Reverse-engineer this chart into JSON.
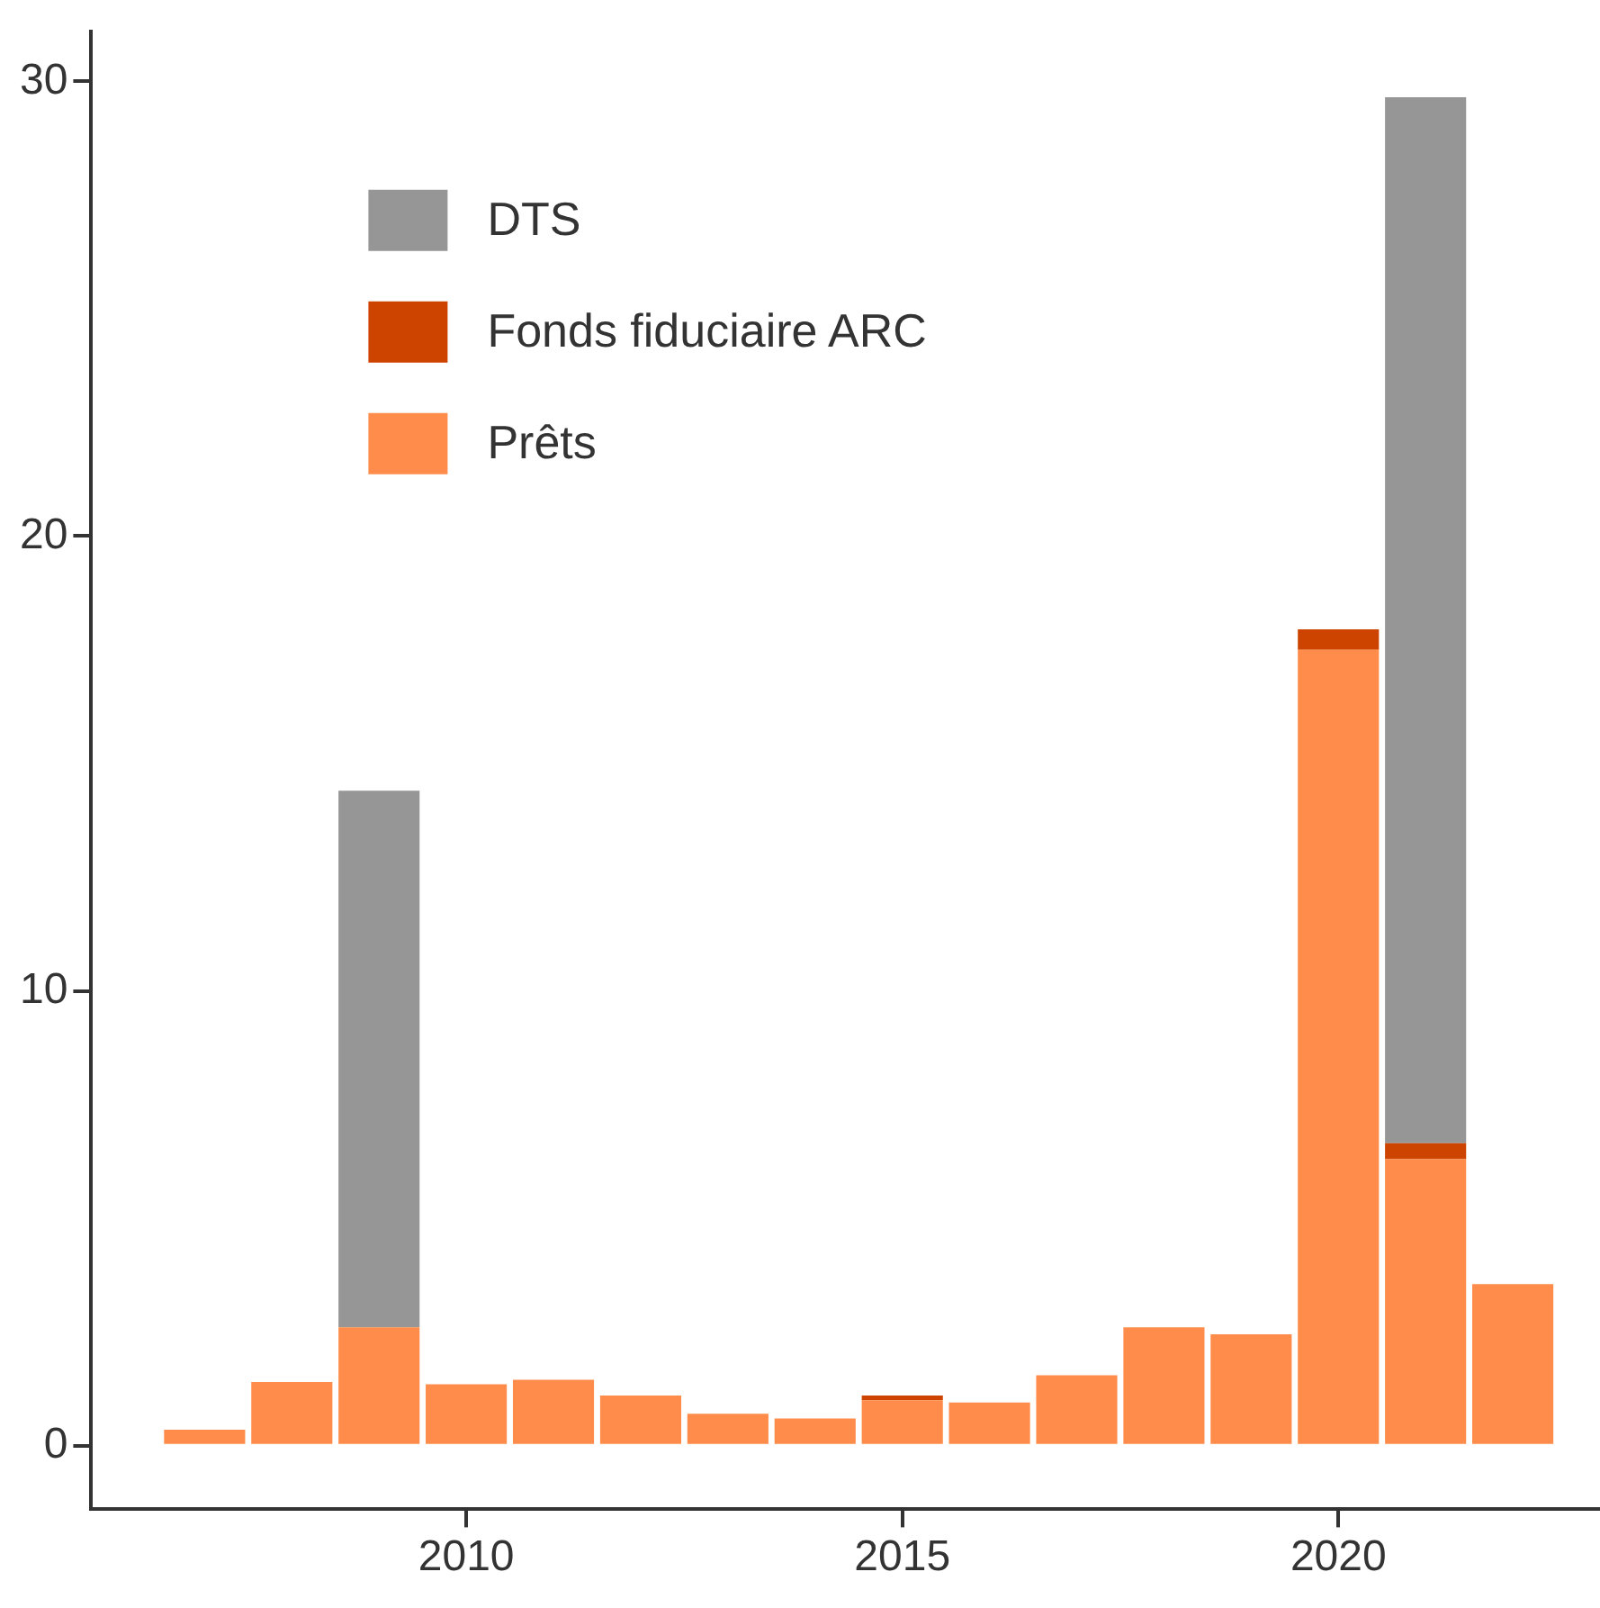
{
  "chart_data": {
    "type": "bar",
    "stacked": true,
    "legend": "top left",
    "x": [
      2007,
      2008,
      2009,
      2010,
      2011,
      2012,
      2013,
      2014,
      2015,
      2016,
      2017,
      2018,
      2019,
      2020,
      2021,
      2022
    ],
    "xlim": [
      2005.7,
      2023
    ],
    "xticks": [
      2010,
      2015,
      2020
    ],
    "ylim": [
      -1.4,
      31.1
    ],
    "yticks": [
      0,
      10,
      20,
      30
    ],
    "series": [
      {
        "name": "Prêts",
        "color": "#ff8c4a",
        "values": [
          0.35,
          1.4,
          2.6,
          1.35,
          1.45,
          1.1,
          0.7,
          0.6,
          1.0,
          0.95,
          1.55,
          2.6,
          2.45,
          17.5,
          6.3,
          3.55
        ]
      },
      {
        "name": "Fonds fiduciaire ARC",
        "color": "#cc4400",
        "values": [
          null,
          null,
          null,
          null,
          null,
          null,
          null,
          null,
          0.1,
          null,
          null,
          null,
          null,
          0.45,
          0.35,
          null
        ]
      },
      {
        "name": "DTS",
        "color": "#969696",
        "values": [
          null,
          null,
          11.8,
          null,
          null,
          null,
          null,
          null,
          null,
          null,
          null,
          null,
          null,
          null,
          23.0,
          null
        ]
      }
    ]
  }
}
